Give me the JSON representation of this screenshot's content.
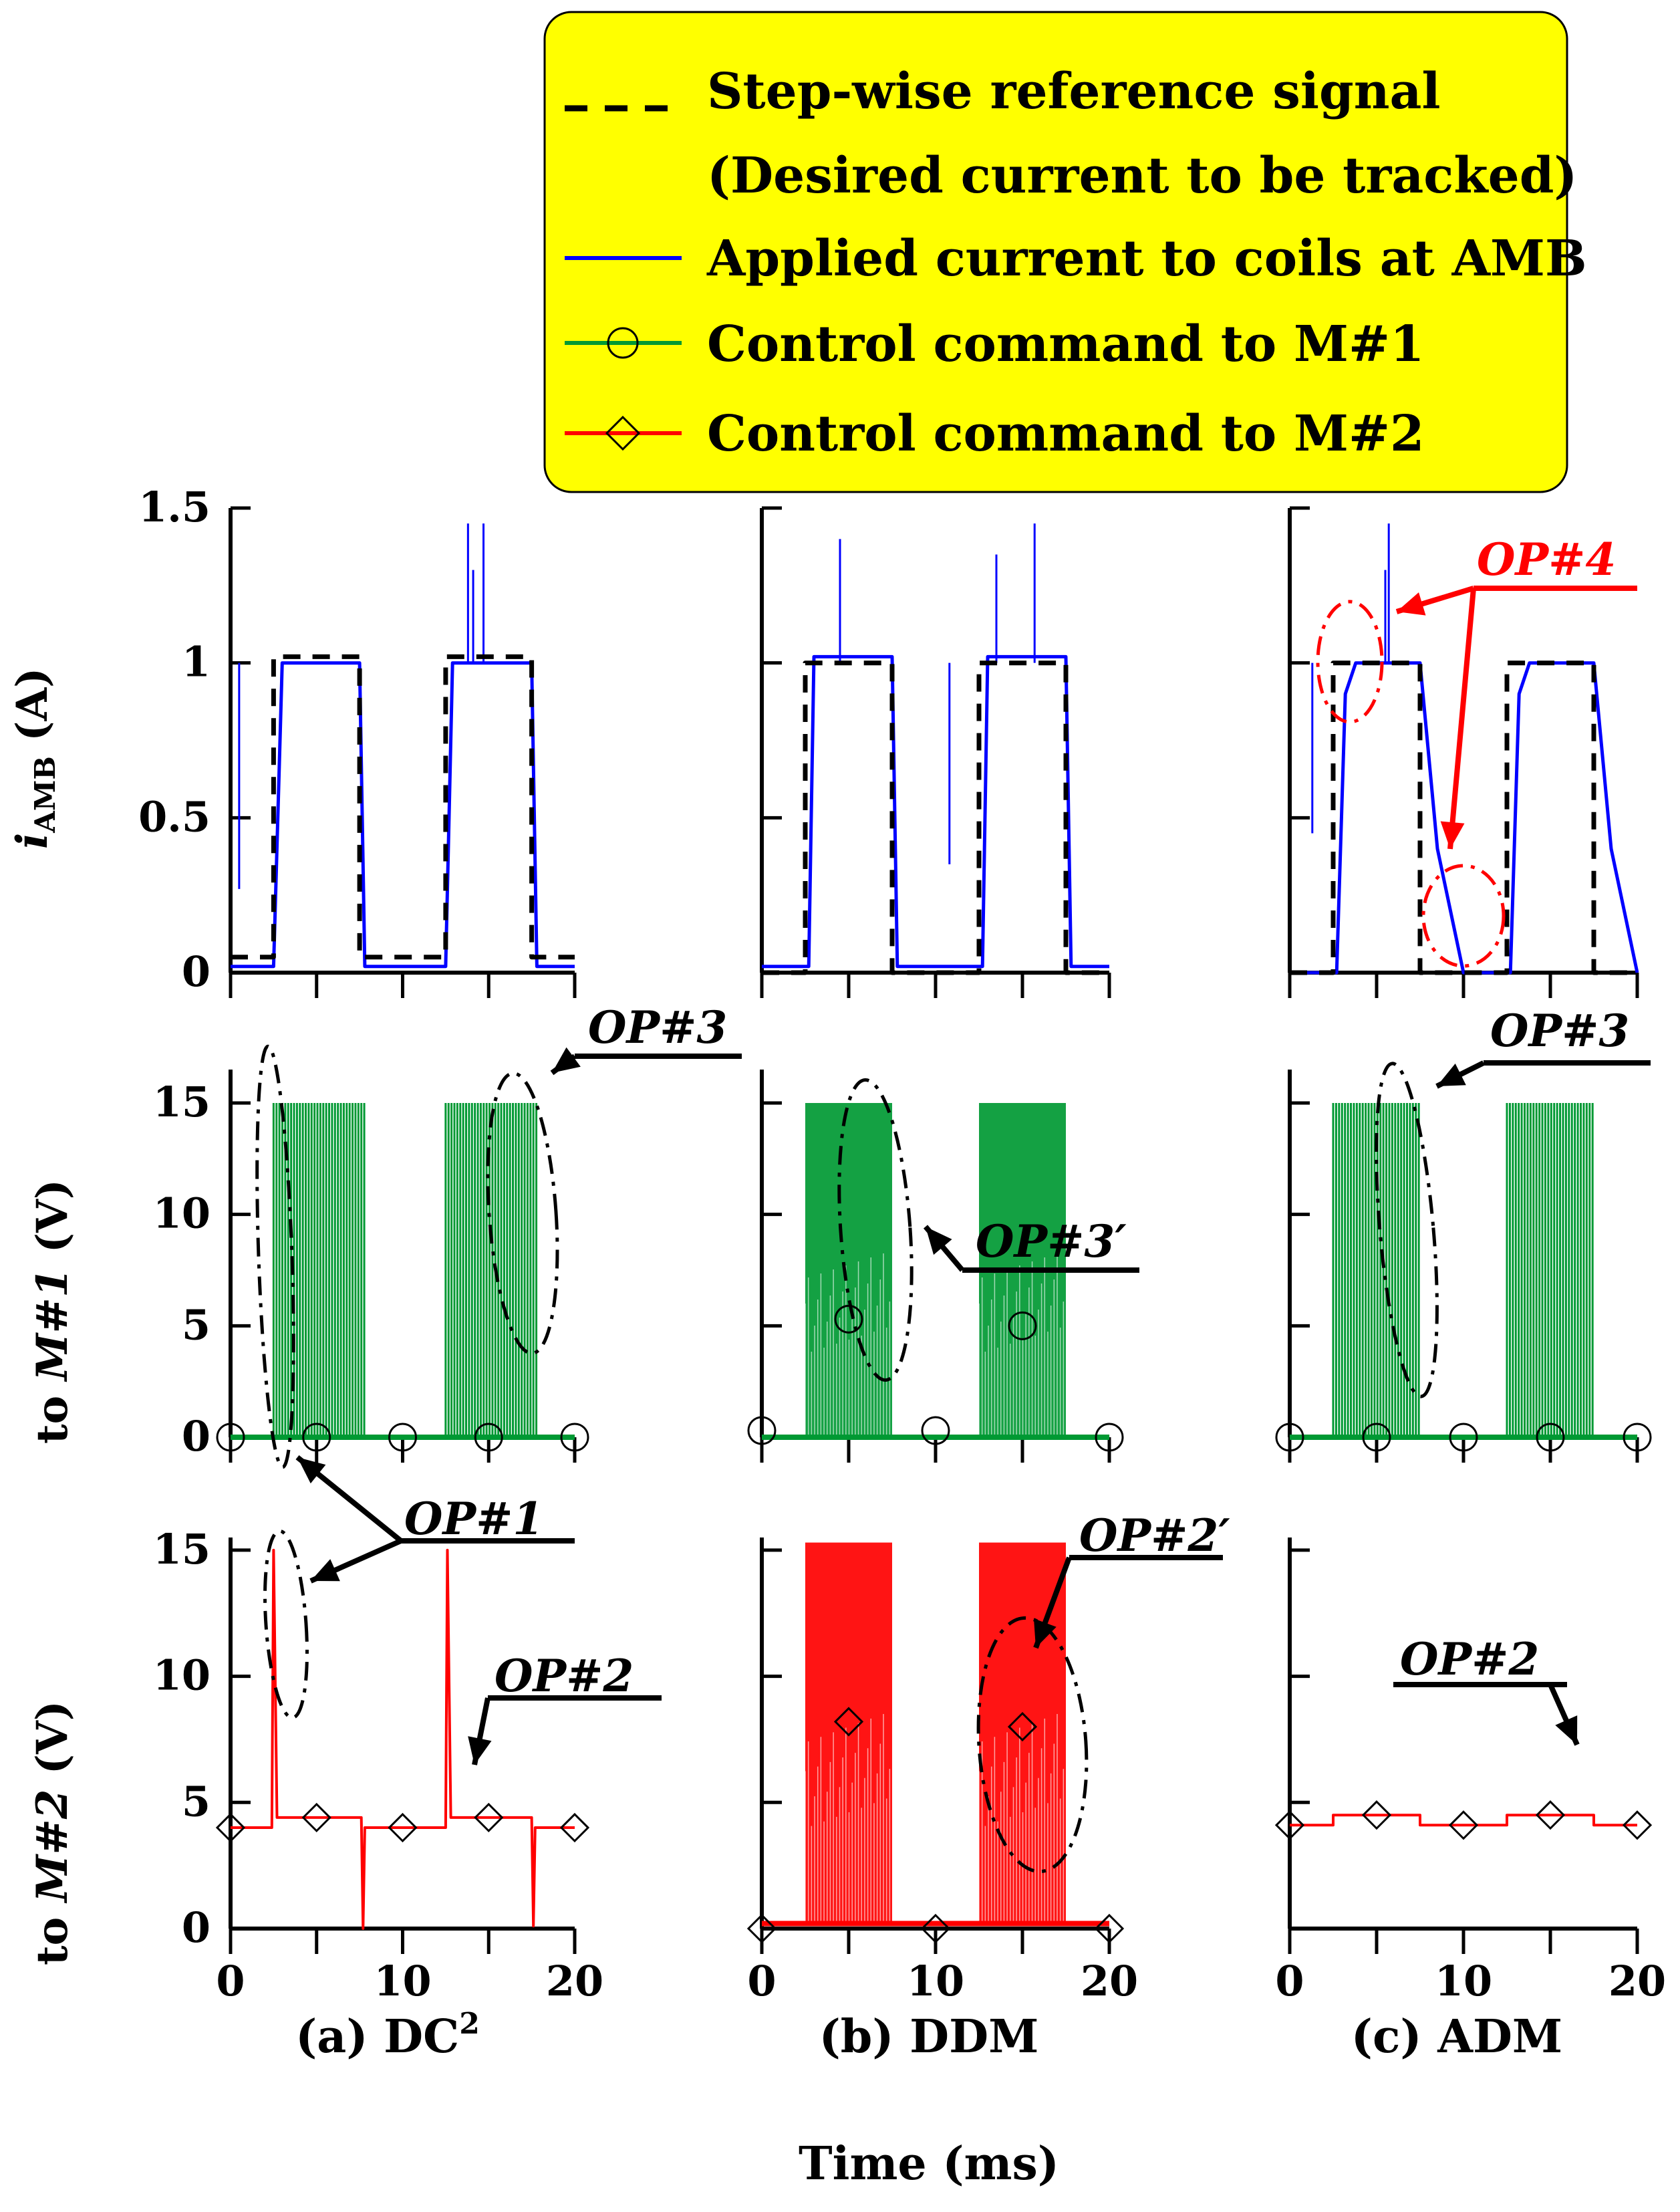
{
  "legend": {
    "items": [
      {
        "label_line1": "Step-wise reference signal",
        "label_line2": "(Desired current to be tracked)",
        "style": "dashed",
        "color": "#000000",
        "marker": "none"
      },
      {
        "label_line1": "Applied current to coils at AMB",
        "style": "solid",
        "color": "#0000ff",
        "marker": "none"
      },
      {
        "label_line1": "Control command to M#1",
        "style": "solid",
        "color": "#009933",
        "marker": "circle"
      },
      {
        "label_line1": "Control command to M#2",
        "style": "solid",
        "color": "#ff0000",
        "marker": "diamond"
      }
    ],
    "background": "#ffff00"
  },
  "axes": {
    "row1_ylabel": "i",
    "row1_ylabel_sub": "AMB",
    "row1_ylabel_unit": " (A)",
    "row2_ylabel_pre": "to ",
    "row2_ylabel_it": "M#1",
    "row2_ylabel_unit": " (V)",
    "row3_ylabel_pre": "to ",
    "row3_ylabel_it": "M#2",
    "row3_ylabel_unit": " (V)",
    "row1_ticks": [
      "0",
      "0.5",
      "1",
      "1.5"
    ],
    "row2_ticks": [
      "0",
      "5",
      "10",
      "15"
    ],
    "row3_ticks": [
      "0",
      "5",
      "10",
      "15"
    ],
    "x_ticks": [
      "0",
      "10",
      "20"
    ],
    "x_label": "Time (ms)"
  },
  "captions": {
    "a": "(a) DC",
    "a_sup": "2",
    "b": "(b) DDM",
    "c": "(c) ADM"
  },
  "annotations": {
    "op1": "OP#1",
    "op2": "OP#2",
    "op2p": "OP#2′",
    "op3": "OP#3",
    "op3p": "OP#3′",
    "op4": "OP#4"
  },
  "colors": {
    "ref": "#000000",
    "amb": "#0000ff",
    "m1": "#009933",
    "m2": "#ff0000",
    "op4": "#ff0000",
    "legend_bg": "#ffff00"
  },
  "chart_data": [
    {
      "type": "line",
      "title": "(a) DC2",
      "x_range": [
        0,
        20
      ],
      "series": [
        {
          "name": "Step-wise reference signal",
          "points": [
            [
              0,
              0.05
            ],
            [
              2.5,
              0.05
            ],
            [
              2.5,
              1.02
            ],
            [
              7.5,
              1.02
            ],
            [
              7.5,
              0.05
            ],
            [
              12.5,
              0.05
            ],
            [
              12.5,
              1.02
            ],
            [
              17.5,
              1.02
            ],
            [
              17.5,
              0.05
            ],
            [
              20,
              0.05
            ]
          ]
        },
        {
          "name": "Applied current to coils at AMB",
          "points": [
            [
              0,
              0.02
            ],
            [
              2.5,
              0.02
            ],
            [
              3,
              1.0
            ],
            [
              7.5,
              1.0
            ],
            [
              7.8,
              0.02
            ],
            [
              12.5,
              0.02
            ],
            [
              12.9,
              1.0
            ],
            [
              17.5,
              1.0
            ],
            [
              17.8,
              0.02
            ],
            [
              20,
              0.02
            ]
          ],
          "spikes": [
            [
              0.5,
              0.27
            ],
            [
              13.8,
              1.45
            ],
            [
              14.1,
              1.3
            ],
            [
              14.7,
              1.45
            ]
          ]
        },
        {
          "name": "Control command to M#1",
          "y_range": [
            0,
            15
          ],
          "pulse_windows": [
            [
              2.5,
              7.8
            ],
            [
              12.5,
              17.8
            ]
          ],
          "pulse_high": 15,
          "base": 0
        },
        {
          "name": "Control command to M#2",
          "y_range": [
            0,
            15
          ],
          "points": [
            [
              0,
              4.0
            ],
            [
              2.4,
              4.0
            ],
            [
              2.5,
              15
            ],
            [
              2.7,
              4.4
            ],
            [
              7.6,
              4.4
            ],
            [
              7.7,
              0
            ],
            [
              7.8,
              4.0
            ],
            [
              12.5,
              4.0
            ],
            [
              12.6,
              15
            ],
            [
              12.8,
              4.4
            ],
            [
              17.5,
              4.4
            ],
            [
              17.6,
              0.1
            ],
            [
              17.7,
              4.0
            ],
            [
              20,
              4.0
            ]
          ]
        }
      ]
    },
    {
      "type": "line",
      "title": "(b) DDM",
      "x_range": [
        0,
        20
      ],
      "series": [
        {
          "name": "Step-wise reference signal",
          "points": [
            [
              0,
              0
            ],
            [
              2.5,
              0
            ],
            [
              2.5,
              1.0
            ],
            [
              7.5,
              1.0
            ],
            [
              7.5,
              0
            ],
            [
              12.5,
              0
            ],
            [
              12.5,
              1.0
            ],
            [
              17.5,
              1.0
            ],
            [
              17.5,
              0
            ],
            [
              20,
              0
            ]
          ]
        },
        {
          "name": "Applied current to coils at AMB",
          "points": [
            [
              0,
              0.02
            ],
            [
              2.7,
              0.02
            ],
            [
              3.0,
              1.02
            ],
            [
              7.5,
              1.02
            ],
            [
              7.8,
              0.02
            ],
            [
              12.7,
              0.02
            ],
            [
              13.0,
              1.02
            ],
            [
              17.5,
              1.02
            ],
            [
              17.8,
              0.02
            ],
            [
              20,
              0.02
            ]
          ],
          "spikes": [
            [
              4.5,
              1.4
            ],
            [
              13.5,
              1.35
            ],
            [
              15.7,
              1.45
            ],
            [
              10.8,
              0.35
            ]
          ]
        },
        {
          "name": "Control command to M#1",
          "y_range": [
            0,
            15
          ],
          "filled_windows": [
            [
              2.5,
              7.5
            ],
            [
              12.5,
              17.5
            ]
          ],
          "pulse_high": 15,
          "base": 0
        },
        {
          "name": "Control command to M#2",
          "y_range": [
            0,
            15
          ],
          "filled_windows": [
            [
              2.5,
              7.5
            ],
            [
              12.5,
              17.5
            ]
          ],
          "pulse_high": 15.3,
          "base": 0.2
        }
      ]
    },
    {
      "type": "line",
      "title": "(c) ADM",
      "x_range": [
        0,
        20
      ],
      "series": [
        {
          "name": "Step-wise reference signal",
          "points": [
            [
              0,
              0
            ],
            [
              2.5,
              0
            ],
            [
              2.5,
              1.0
            ],
            [
              7.5,
              1.0
            ],
            [
              7.5,
              0
            ],
            [
              12.5,
              0
            ],
            [
              12.5,
              1.0
            ],
            [
              17.5,
              1.0
            ],
            [
              17.5,
              0
            ],
            [
              20,
              0
            ]
          ]
        },
        {
          "name": "Applied current to coils at AMB",
          "points": [
            [
              0,
              0
            ],
            [
              2.7,
              0
            ],
            [
              3.2,
              0.9
            ],
            [
              3.8,
              1.0
            ],
            [
              7.5,
              1.0
            ],
            [
              8.5,
              0.4
            ],
            [
              10,
              0
            ],
            [
              12.7,
              0
            ],
            [
              13.2,
              0.9
            ],
            [
              13.8,
              1.0
            ],
            [
              17.5,
              1.0
            ],
            [
              18.5,
              0.4
            ],
            [
              20,
              0
            ]
          ],
          "spikes": [
            [
              1.3,
              0.45
            ],
            [
              5.7,
              1.45
            ],
            [
              5.5,
              1.3
            ]
          ]
        },
        {
          "name": "Control command to M#1",
          "y_range": [
            0,
            15
          ],
          "pulse_windows": [
            [
              2.5,
              7.5
            ],
            [
              12.5,
              17.5
            ]
          ],
          "pulse_high": 15,
          "base": 0
        },
        {
          "name": "Control command to M#2",
          "y_range": [
            0,
            15
          ],
          "points": [
            [
              0,
              4.1
            ],
            [
              2.5,
              4.1
            ],
            [
              2.5,
              4.5
            ],
            [
              7.5,
              4.5
            ],
            [
              7.5,
              4.1
            ],
            [
              12.5,
              4.1
            ],
            [
              12.5,
              4.5
            ],
            [
              17.5,
              4.5
            ],
            [
              17.5,
              4.1
            ],
            [
              20,
              4.1
            ]
          ]
        }
      ]
    }
  ]
}
